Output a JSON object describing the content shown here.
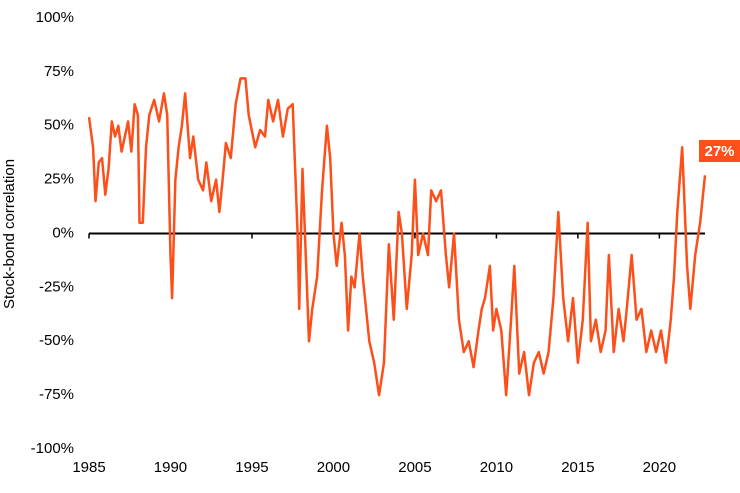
{
  "chart_data": {
    "type": "line",
    "ylabel": "Stock-bond correlation",
    "xlim": [
      1985,
      2022.8
    ],
    "xticks": [
      1985,
      1990,
      1995,
      2000,
      2005,
      2010,
      2015,
      2020
    ],
    "ylim": [
      -100,
      100
    ],
    "yticks": [
      {
        "value": -100,
        "label": "-100%"
      },
      {
        "value": -75,
        "label": "-75%"
      },
      {
        "value": -50,
        "label": "-50%"
      },
      {
        "value": -25,
        "label": "-25%"
      },
      {
        "value": 0,
        "label": "0%"
      },
      {
        "value": 25,
        "label": "25%"
      },
      {
        "value": 50,
        "label": "50%"
      },
      {
        "value": 75,
        "label": "75%"
      },
      {
        "value": 100,
        "label": "100%"
      }
    ],
    "grid": false,
    "x": [
      1985,
      1985.25,
      1985.4,
      1985.6,
      1985.8,
      1986.0,
      1986.2,
      1986.4,
      1986.6,
      1986.8,
      1987.0,
      1987.2,
      1987.4,
      1987.6,
      1987.8,
      1988.0,
      1988.1,
      1988.3,
      1988.5,
      1988.7,
      1989.0,
      1989.3,
      1989.6,
      1989.8,
      1990.0,
      1990.1,
      1990.3,
      1990.5,
      1990.7,
      1990.9,
      1991.2,
      1991.4,
      1991.7,
      1992.0,
      1992.2,
      1992.5,
      1992.8,
      1993.0,
      1993.2,
      1993.4,
      1993.7,
      1994.0,
      1994.3,
      1994.6,
      1994.8,
      1995.2,
      1995.5,
      1995.8,
      1996.0,
      1996.3,
      1996.6,
      1996.9,
      1997.2,
      1997.5,
      1997.8,
      1997.9,
      1998.1,
      1998.3,
      1998.5,
      1998.7,
      1999.0,
      1999.3,
      1999.6,
      1999.8,
      2000.0,
      2000.2,
      2000.5,
      2000.7,
      2000.9,
      2001.1,
      2001.3,
      2001.6,
      2001.8,
      2002.0,
      2002.2,
      2002.5,
      2002.8,
      2003.1,
      2003.4,
      2003.7,
      2004.0,
      2004.2,
      2004.5,
      2004.8,
      2005.0,
      2005.2,
      2005.5,
      2005.8,
      2006.0,
      2006.3,
      2006.6,
      2006.9,
      2007.1,
      2007.4,
      2007.7,
      2008.0,
      2008.3,
      2008.6,
      2008.9,
      2009.1,
      2009.3,
      2009.6,
      2009.8,
      2010.0,
      2010.3,
      2010.6,
      2010.9,
      2011.1,
      2011.4,
      2011.7,
      2012.0,
      2012.3,
      2012.6,
      2012.9,
      2013.2,
      2013.5,
      2013.8,
      2014.1,
      2014.4,
      2014.7,
      2015.0,
      2015.3,
      2015.6,
      2015.8,
      2016.1,
      2016.4,
      2016.7,
      2016.9,
      2017.2,
      2017.5,
      2017.8,
      2018.0,
      2018.3,
      2018.6,
      2018.9,
      2019.2,
      2019.5,
      2019.8,
      2020.1,
      2020.4,
      2020.7,
      2020.9,
      2021.1,
      2021.4,
      2021.7,
      2021.9,
      2022.2,
      2022.5,
      2022.8
    ],
    "series": [
      {
        "name": "Stock-bond correlation",
        "color": "#fc4f1a",
        "values": [
          54,
          40,
          15,
          33,
          35,
          18,
          30,
          52,
          45,
          50,
          38,
          45,
          52,
          38,
          60,
          55,
          5,
          5,
          40,
          55,
          62,
          52,
          65,
          55,
          -10,
          -30,
          25,
          40,
          50,
          65,
          35,
          45,
          25,
          20,
          33,
          15,
          25,
          10,
          25,
          42,
          35,
          60,
          72,
          72,
          55,
          40,
          48,
          45,
          62,
          52,
          62,
          45,
          58,
          60,
          0,
          -35,
          30,
          -10,
          -50,
          -35,
          -20,
          20,
          50,
          35,
          0,
          -15,
          5,
          -10,
          -45,
          -20,
          -25,
          0,
          -20,
          -35,
          -50,
          -60,
          -75,
          -60,
          -5,
          -40,
          10,
          0,
          -35,
          -10,
          25,
          -10,
          0,
          -10,
          20,
          15,
          20,
          -10,
          -25,
          0,
          -40,
          -55,
          -50,
          -62,
          -45,
          -35,
          -30,
          -15,
          -45,
          -35,
          -45,
          -75,
          -40,
          -15,
          -65,
          -55,
          -75,
          -60,
          -55,
          -65,
          -55,
          -30,
          10,
          -30,
          -50,
          -30,
          -60,
          -40,
          5,
          -50,
          -40,
          -55,
          -45,
          -10,
          -55,
          -35,
          -50,
          -35,
          -10,
          -40,
          -35,
          -55,
          -45,
          -55,
          -45,
          -60,
          -40,
          -20,
          10,
          40,
          -15,
          -35,
          -10,
          5,
          27
        ]
      }
    ],
    "annotations": [
      {
        "text": "27%",
        "x": 2022.8,
        "y": 27
      }
    ]
  }
}
